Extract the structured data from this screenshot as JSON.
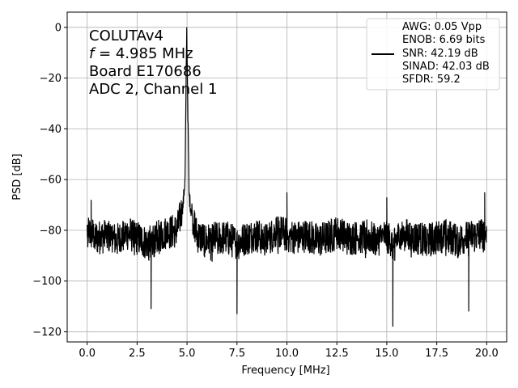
{
  "chart_data": {
    "type": "line",
    "title": "",
    "xlabel": "Frequency [MHz]",
    "ylabel": "PSD [dB]",
    "xlim": [
      -1.0,
      21.0
    ],
    "ylim": [
      -124.0,
      6.0
    ],
    "grid": true,
    "xticks": [
      0.0,
      2.5,
      5.0,
      7.5,
      10.0,
      12.5,
      15.0,
      17.5,
      20.0
    ],
    "xtick_labels": [
      "0.0",
      "2.5",
      "5.0",
      "7.5",
      "10.0",
      "12.5",
      "15.0",
      "17.5",
      "20.0"
    ],
    "yticks": [
      0,
      -20,
      -40,
      -60,
      -80,
      -100,
      -120
    ],
    "ytick_labels": [
      "0",
      "−20",
      "−40",
      "−60",
      "−80",
      "−100",
      "−120"
    ],
    "annotation": {
      "line1": "COLUTAv4",
      "line2_symbol": "f",
      "line2_rest": " = 4.985 MHz",
      "line3": "Board E170686",
      "line4": "ADC 2, Channel 1"
    },
    "legend": {
      "placement": "top-right",
      "lines": [
        "AWG: 0.05 Vpp",
        "ENOB: 6.69 bits",
        "SNR: 42.19 dB",
        "SINAD: 42.03 dB",
        "SFDR: 59.2"
      ]
    },
    "series": [
      {
        "color": "#000000",
        "fundamental": {
          "freq": 4.985,
          "peak": 0
        },
        "noise_floor_mean": -83,
        "x": [
          0.0,
          0.5,
          1.0,
          1.5,
          2.0,
          2.5,
          3.0,
          3.5,
          4.0,
          4.5,
          4.8,
          4.9,
          4.985,
          5.1,
          5.2,
          5.5,
          6.0,
          6.5,
          7.0,
          7.5,
          8.0,
          8.5,
          9.0,
          9.5,
          10.0,
          10.5,
          11.0,
          11.5,
          12.0,
          12.5,
          13.0,
          13.5,
          14.0,
          14.5,
          15.0,
          15.3,
          15.5,
          16.0,
          16.5,
          17.0,
          17.5,
          18.0,
          18.5,
          19.0,
          19.5,
          20.0
        ],
        "y": [
          -80,
          -83,
          -82,
          -84,
          -81,
          -83,
          -85,
          -82,
          -81,
          -80,
          -70,
          -60,
          0,
          -66,
          -72,
          -82,
          -84,
          -83,
          -83,
          -85,
          -83,
          -82,
          -84,
          -80,
          -82,
          -83,
          -82,
          -84,
          -83,
          -81,
          -83,
          -83,
          -82,
          -84,
          -82,
          -86,
          -83,
          -82,
          -83,
          -84,
          -83,
          -82,
          -84,
          -83,
          -82,
          -81
        ],
        "spurs_max": [
          {
            "x": 0.2,
            "y": -68
          },
          {
            "x": 10.0,
            "y": -65
          },
          {
            "x": 15.0,
            "y": -67
          },
          {
            "x": 19.9,
            "y": -65
          }
        ],
        "spurs_min": [
          {
            "x": 3.2,
            "y": -111
          },
          {
            "x": 7.5,
            "y": -113
          },
          {
            "x": 15.3,
            "y": -118
          },
          {
            "x": 19.1,
            "y": -112
          }
        ]
      }
    ]
  }
}
